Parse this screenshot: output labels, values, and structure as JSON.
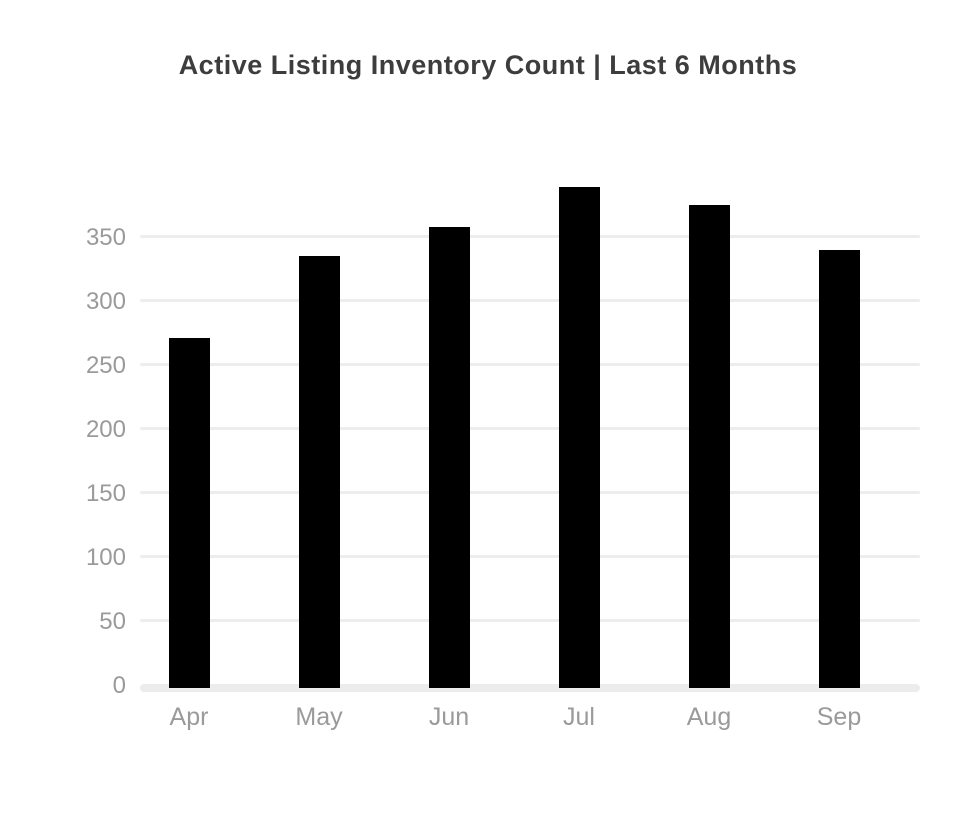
{
  "chart_data": {
    "type": "bar",
    "title": "Active Listing Inventory Count | Last 6 Months",
    "categories": [
      "Apr",
      "May",
      "Jun",
      "Jul",
      "Aug",
      "Sep"
    ],
    "values": [
      270,
      334,
      357,
      388,
      374,
      339
    ],
    "xlabel": "",
    "ylabel": "",
    "ylim": [
      0,
      400
    ],
    "yticks": [
      0,
      50,
      100,
      150,
      200,
      250,
      300,
      350
    ],
    "grid": true,
    "legend": false,
    "bar_color": "#000000",
    "gridline_color": "#ededed",
    "axis_label_color": "#9a9a9a",
    "title_color": "#3d3d3d",
    "background_color": "#ffffff"
  }
}
